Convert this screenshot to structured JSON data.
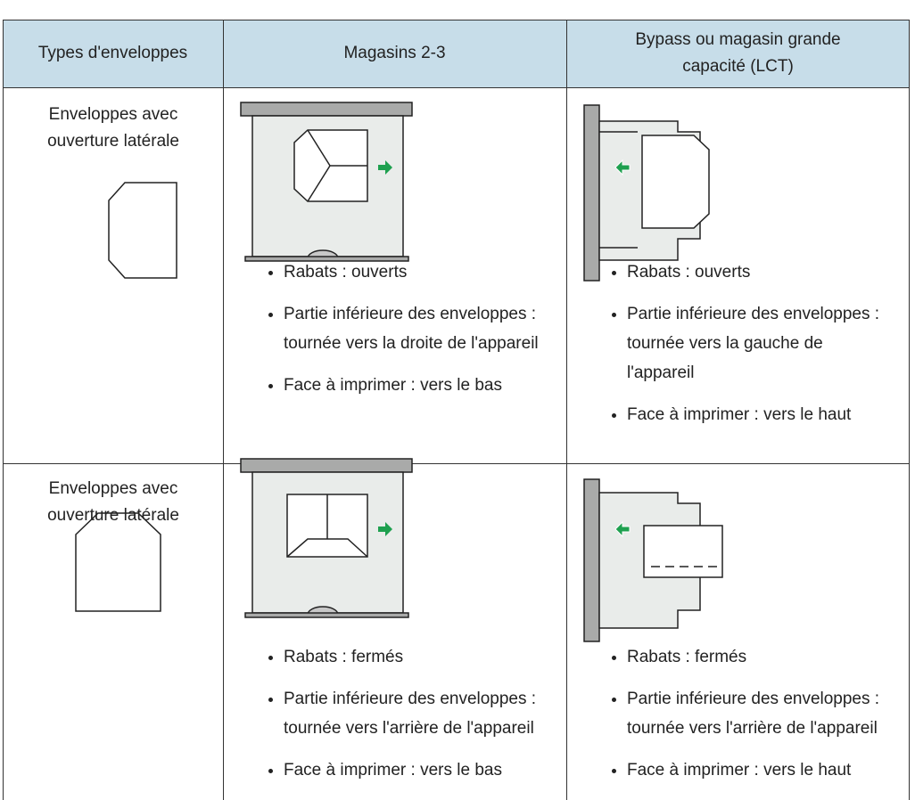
{
  "header": {
    "columns": [
      "Types d'enveloppes",
      "Magasins 2-3",
      "Bypass ou magasin grande capacité (LCT)"
    ]
  },
  "table": {
    "rows": [
      {
        "type": "Enveloppes avec ouverture latérale",
        "tray": [
          "Rabats : ouverts",
          "Partie inférieure des enveloppes : tournée vers la droite de l'appareil",
          "Face à imprimer : vers le bas"
        ],
        "bypass": [
          "Rabats : ouverts",
          "Partie inférieure des enveloppes : tournée vers la gauche de l'appareil",
          "Face à imprimer : vers le haut"
        ]
      },
      {
        "type": "Enveloppes avec ouverture latérale",
        "tray": [
          "Rabats : fermés",
          "Partie inférieure des enveloppes : tournée vers l'arrière de l'appareil",
          "Face à imprimer : vers le bas"
        ],
        "bypass": [
          "Rabats : fermés",
          "Partie inférieure des enveloppes : tournée vers l'arrière de l'appareil",
          "Face à imprimer : vers le haut"
        ]
      }
    ]
  }
}
